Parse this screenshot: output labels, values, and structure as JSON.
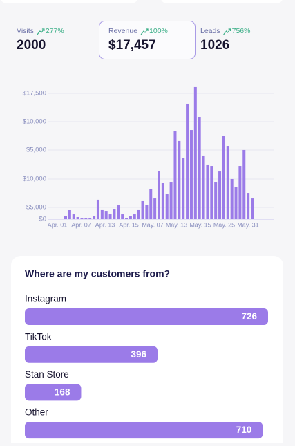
{
  "stats": [
    {
      "label": "Visits",
      "change": "277%",
      "value": "2000"
    },
    {
      "label": "Revenue",
      "change": "100%",
      "value": "$17,457"
    },
    {
      "label": "Leads",
      "change": "756%",
      "value": "1026"
    }
  ],
  "chart_data": [
    {
      "type": "bar",
      "y_labels": [
        "$17,500",
        "$10,000",
        "$5,000",
        "$10,000",
        "$5,000",
        "$0"
      ],
      "x_labels": [
        "Apr. 01",
        "Apr. 07",
        "Apr. 13",
        "Apr. 15",
        "May. 07",
        "May. 13",
        "May. 15",
        "May. 25",
        "May. 31"
      ],
      "values": [
        400,
        1250,
        670,
        290,
        190,
        190,
        190,
        480,
        2700,
        1350,
        1150,
        670,
        1440,
        1920,
        670,
        190,
        480,
        670,
        1350,
        2600,
        2020,
        4230,
        2880,
        6730,
        5000,
        3460,
        5190,
        12210,
        10870,
        8460,
        16060,
        12400,
        18370,
        14230,
        8850,
        7600,
        7400,
        5190,
        6630,
        11540,
        10190,
        5580,
        4520,
        7400,
        9620,
        3650,
        2880
      ],
      "ylim": [
        0,
        17500
      ],
      "color": "#9b7be8"
    },
    {
      "type": "hbar",
      "title": "Where are my customers from?",
      "categories": [
        "Instagram",
        "TikTok",
        "Stan Store",
        "Other"
      ],
      "values": [
        726,
        396,
        168,
        710
      ],
      "color": "#9b7be8"
    }
  ]
}
